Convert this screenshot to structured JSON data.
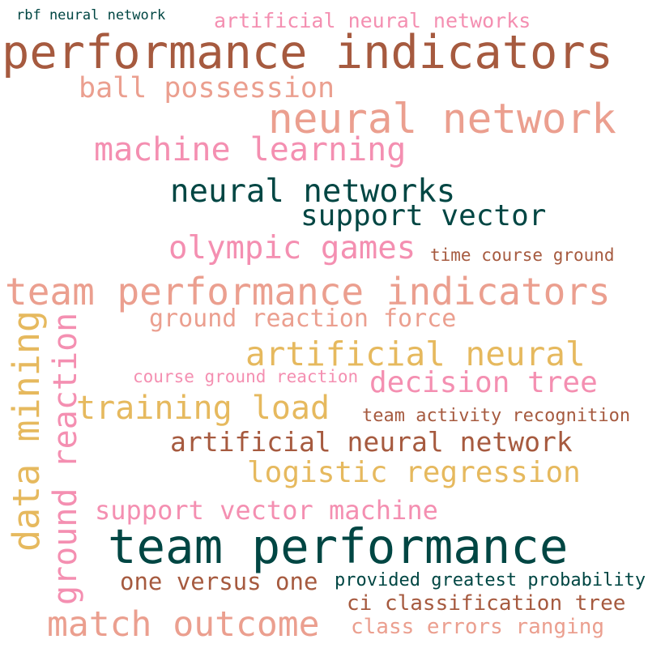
{
  "colors": {
    "green": "#004643",
    "brown": "#a65a3f",
    "salmon": "#eb9f8f",
    "pink": "#f48fb1",
    "gold": "#e6b95e"
  },
  "words": {
    "rbf_neural_network": "rbf neural network",
    "artificial_neural_networks": "artificial neural networks",
    "performance_indicators": "performance indicators",
    "ball_possession": "ball possession",
    "neural_network": "neural network",
    "machine_learning": "machine learning",
    "neural_networks": "neural networks",
    "support_vector": "support vector",
    "olympic_games": "olympic games",
    "time_course_ground": "time course ground",
    "team_performance_indicators": "team performance indicators",
    "data_mining": "data mining",
    "ground_reaction": "ground reaction",
    "ground_reaction_force": "ground reaction force",
    "artificial_neural": "artificial neural",
    "course_ground_reaction": "course ground reaction",
    "decision_tree": "decision tree",
    "training_load": "training load",
    "team_activity_recognition": "team activity recognition",
    "artificial_neural_network": "artificial neural network",
    "logistic_regression": "logistic regression",
    "support_vector_machine": "support vector machine",
    "team_performance": "team performance",
    "one_versus_one": "one versus one",
    "provided_greatest_probability": "provided greatest probability",
    "ci_classification_tree": "ci classification tree",
    "match_outcome": "match outcome",
    "class_errors_ranging": "class errors ranging"
  }
}
